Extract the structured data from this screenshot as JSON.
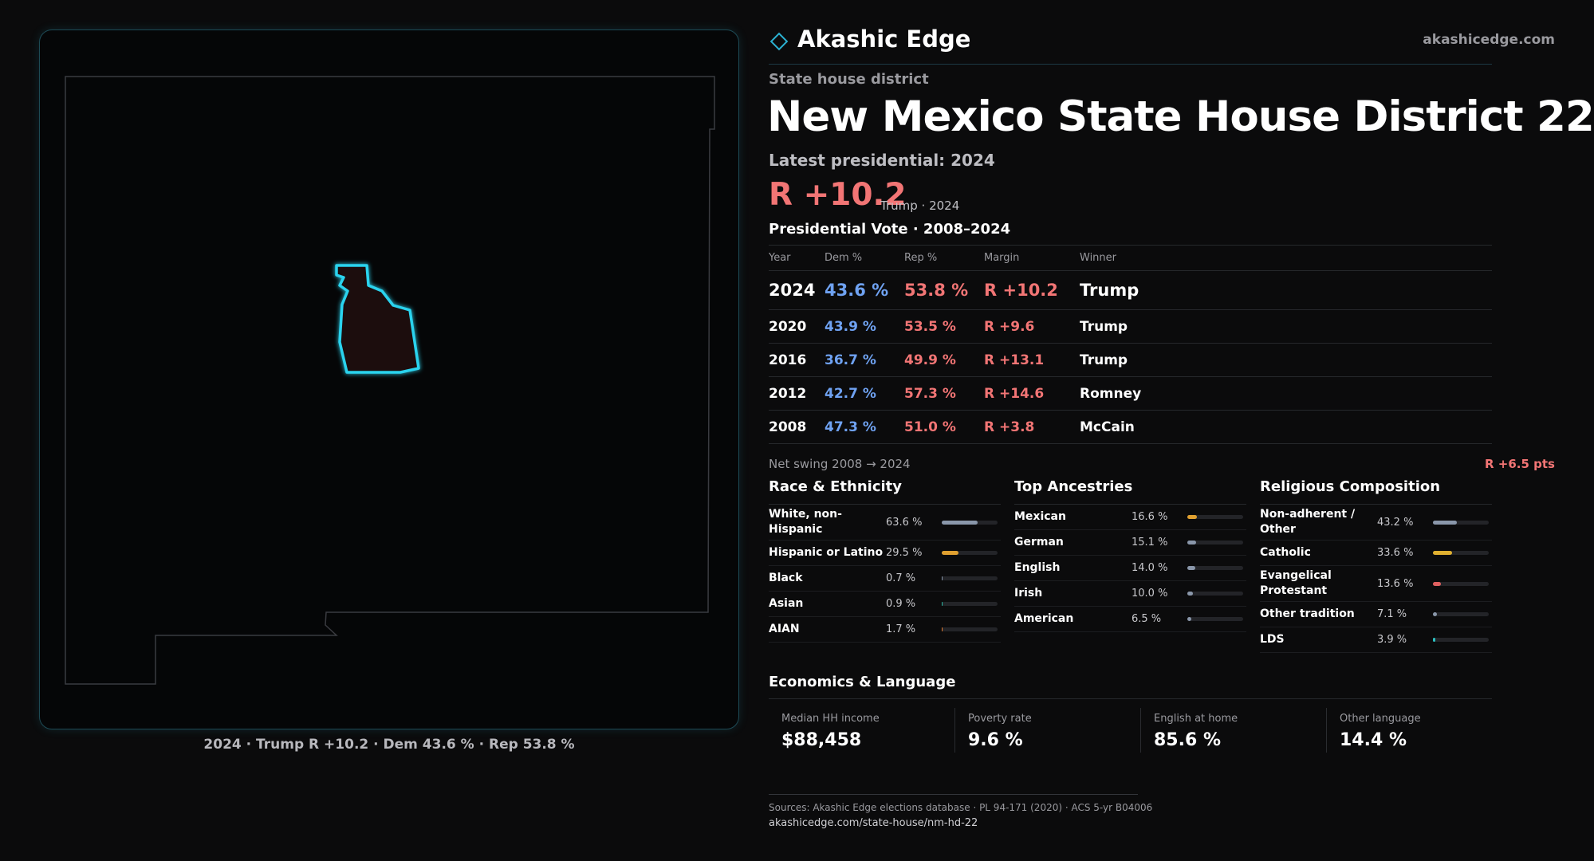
{
  "header": {
    "brand": "Akashic Edge",
    "site": "akashicedge.com"
  },
  "kicker": "State house district",
  "title": "New Mexico State House District 22",
  "latest": "Latest presidential: 2024",
  "headline": {
    "margin": "R +10.2",
    "note": "Trump · 2024"
  },
  "vote_table": {
    "title": "Presidential Vote · 2008–2024",
    "columns": [
      "Year",
      "Dem %",
      "Rep %",
      "Margin",
      "Winner"
    ],
    "rows": [
      [
        "2024",
        "43.6 %",
        "53.8 %",
        "R +10.2",
        "Trump"
      ],
      [
        "2020",
        "43.9 %",
        "53.5 %",
        "R +9.6",
        "Trump"
      ],
      [
        "2016",
        "36.7 %",
        "49.9 %",
        "R +13.1",
        "Trump"
      ],
      [
        "2012",
        "42.7 %",
        "57.3 %",
        "R +14.6",
        "Romney"
      ],
      [
        "2008",
        "47.3 %",
        "51.0 %",
        "R +3.8",
        "McCain"
      ]
    ]
  },
  "swing": {
    "label": "Net swing 2008 → 2024",
    "value": "R +6.5 pts"
  },
  "panels": [
    {
      "title": "Race & Ethnicity",
      "rows": [
        {
          "label": "White, non-Hispanic",
          "value": "63.6 %",
          "color": "#8a97aa"
        },
        {
          "label": "Hispanic or Latino",
          "value": "29.5 %",
          "color": "#e0a030"
        },
        {
          "label": "Black",
          "value": "0.7 %",
          "color": "#8a97aa"
        },
        {
          "label": "Asian",
          "value": "0.9 %",
          "color": "#2bb5a0"
        },
        {
          "label": "AIAN",
          "value": "1.7 %",
          "color": "#e07a30"
        }
      ]
    },
    {
      "title": "Top Ancestries",
      "rows": [
        {
          "label": "Mexican",
          "value": "16.6 %",
          "color": "#e0a030"
        },
        {
          "label": "German",
          "value": "15.1 %",
          "color": "#8a97aa"
        },
        {
          "label": "English",
          "value": "14.0 %",
          "color": "#8a97aa"
        },
        {
          "label": "Irish",
          "value": "10.0 %",
          "color": "#8a97aa"
        },
        {
          "label": "American",
          "value": "6.5 %",
          "color": "#8a97aa"
        }
      ]
    },
    {
      "title": "Religious Composition",
      "rows": [
        {
          "label": "Non-adherent / Other",
          "value": "43.2 %",
          "color": "#8a97aa"
        },
        {
          "label": "Catholic",
          "value": "33.6 %",
          "color": "#e0b030"
        },
        {
          "label": "Evangelical Protestant",
          "value": "13.6 %",
          "color": "#e06060"
        },
        {
          "label": "Other tradition",
          "value": "7.1 %",
          "color": "#8a97aa"
        },
        {
          "label": "LDS",
          "value": "3.9 %",
          "color": "#2bc0c0"
        }
      ]
    }
  ],
  "economics": {
    "title": "Economics & Language",
    "items": [
      {
        "label": "Median HH income",
        "value": "$88,458"
      },
      {
        "label": "Poverty rate",
        "value": "9.6 %"
      },
      {
        "label": "English at home",
        "value": "85.6 %"
      },
      {
        "label": "Other language",
        "value": "14.4 %"
      }
    ]
  },
  "map_caption": "2024 · Trump R +10.2 · Dem 43.6 % · Rep 53.8 %",
  "footer": {
    "sources": "Sources: Akashic Edge elections database · PL 94-171 (2020) · ACS 5-yr B04006",
    "url": "akashicedge.com/state-house/nm-hd-22"
  }
}
